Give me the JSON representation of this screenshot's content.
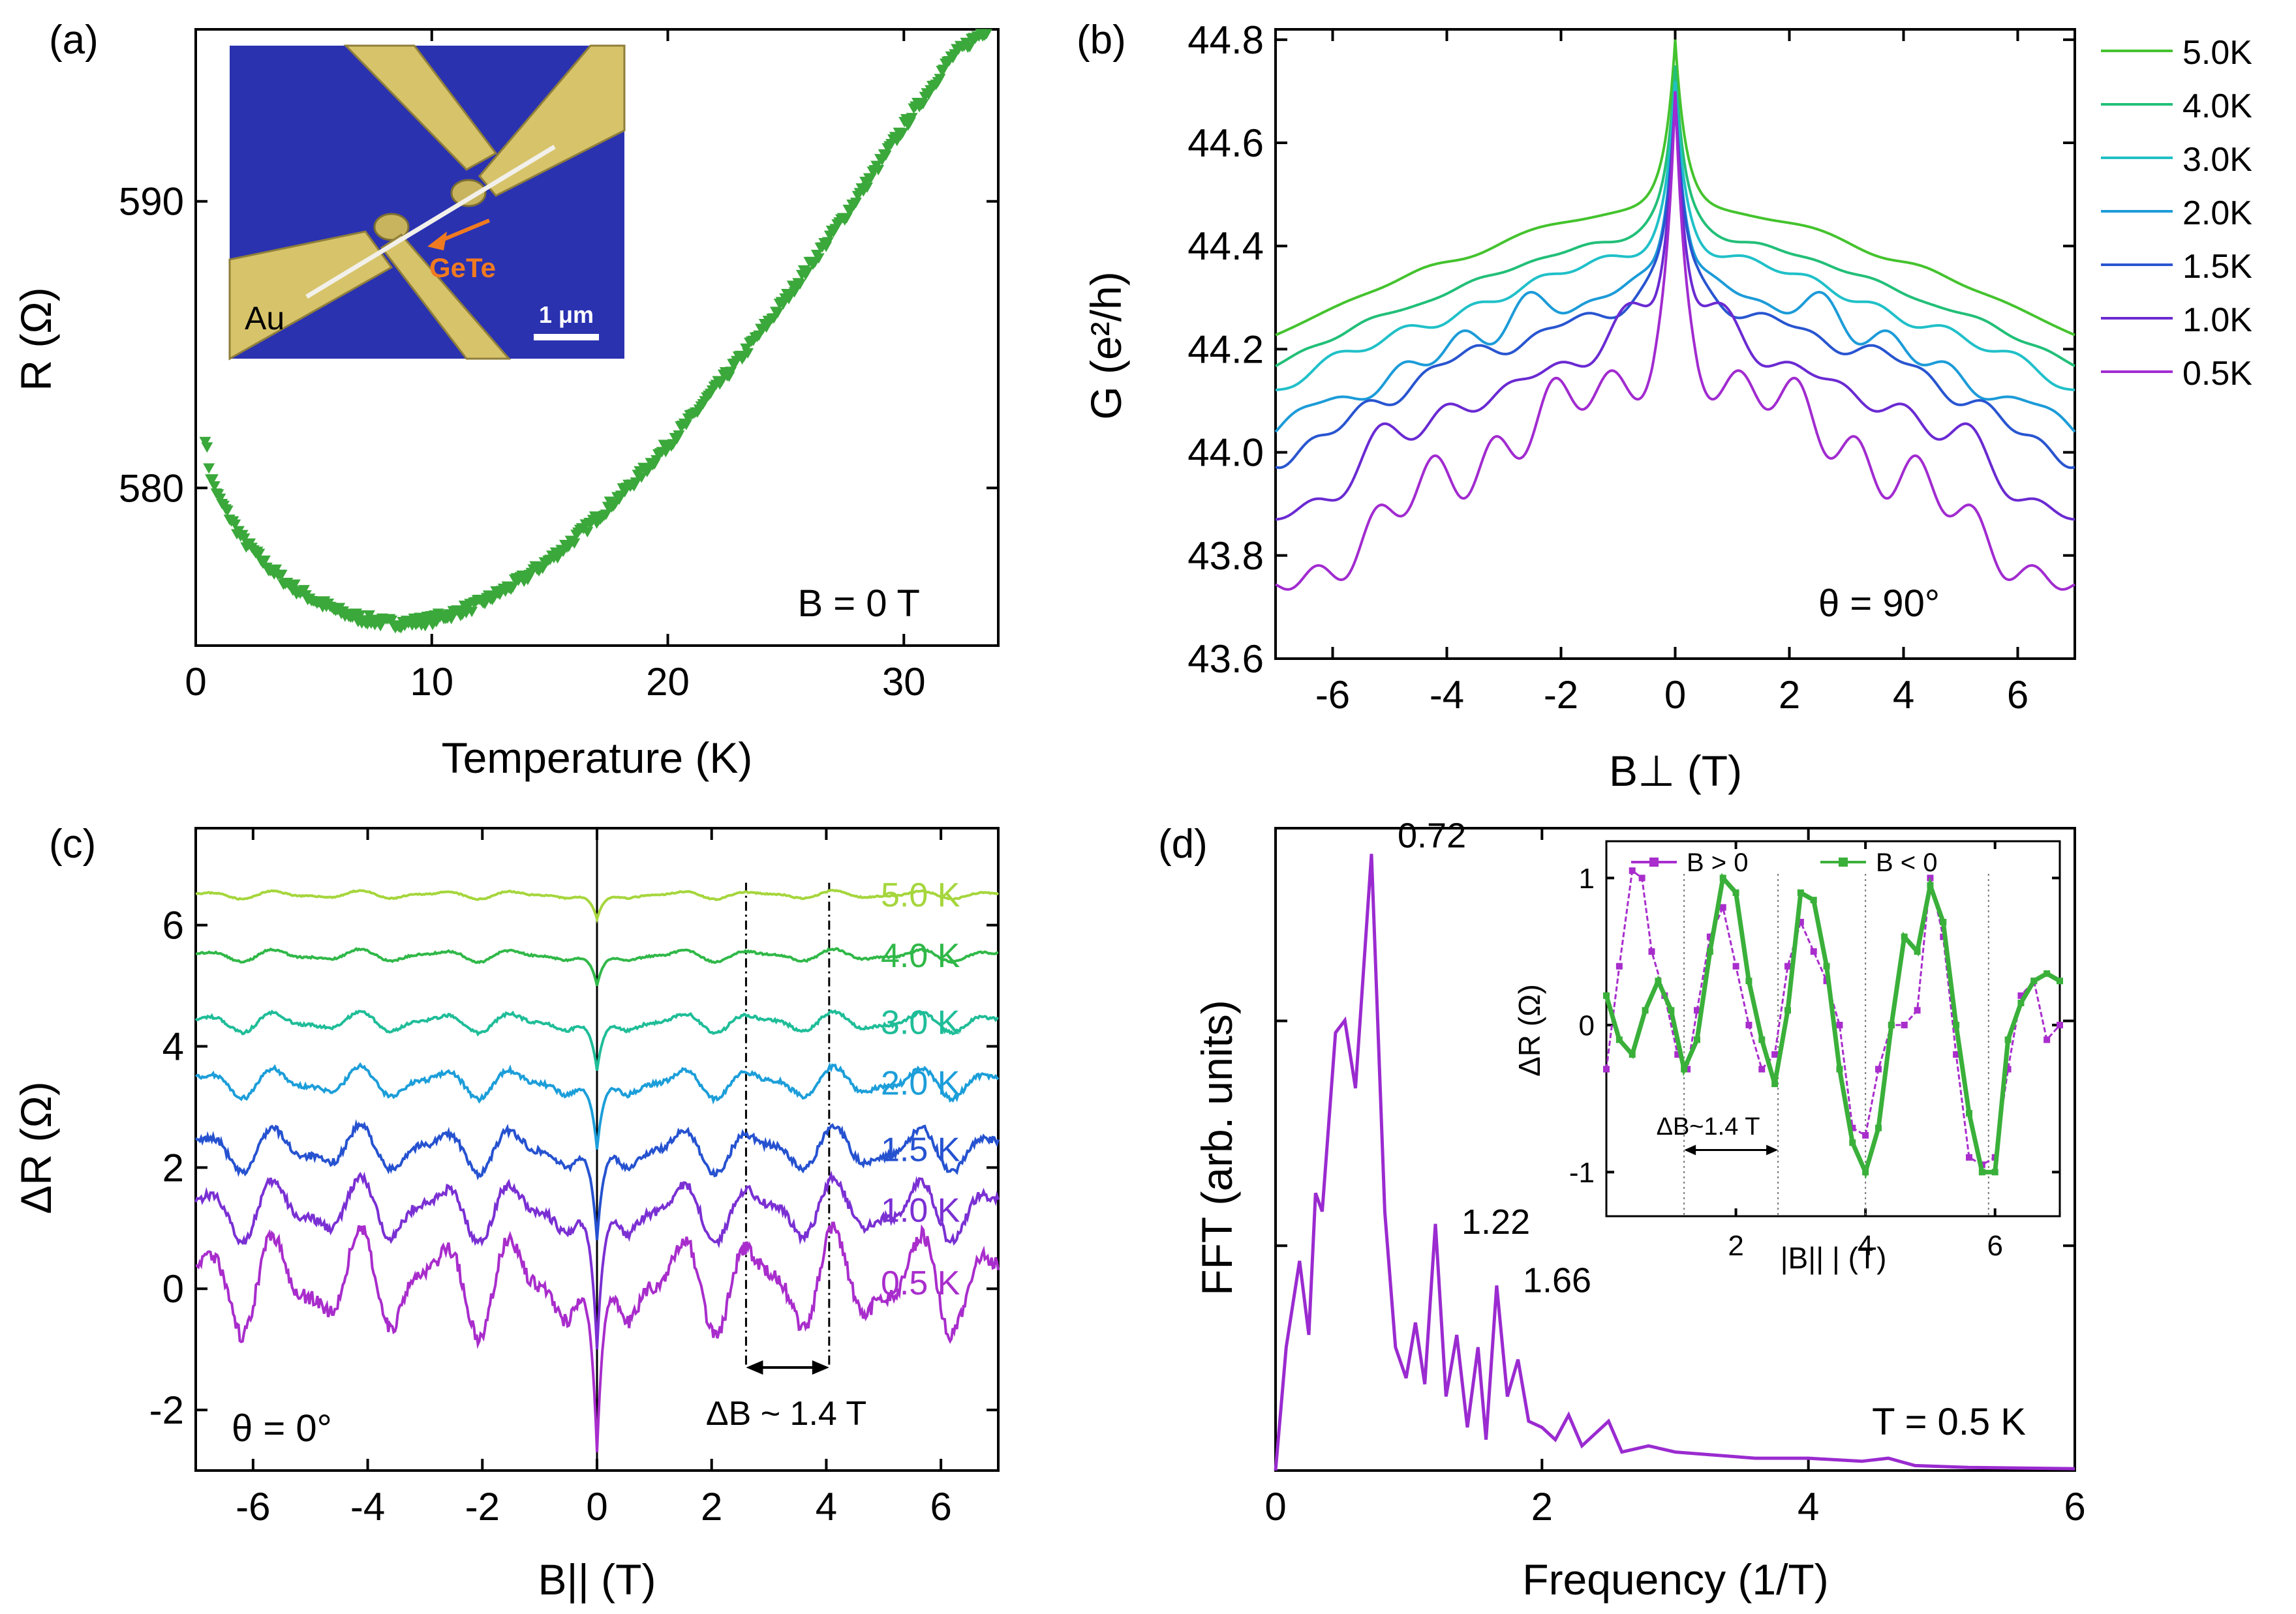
{
  "chart_data": [
    {
      "panel": "(a)",
      "type": "scatter",
      "xlabel": "Temperature (K)",
      "ylabel": "R (Ω)",
      "xlim": [
        0,
        34
      ],
      "ylim": [
        574.5,
        596
      ],
      "xticks": [
        0,
        10,
        20,
        30
      ],
      "yticks": [
        580,
        590
      ],
      "annotation": "B = 0 T",
      "marker_color": "#3aa83a",
      "series": [
        {
          "x": [
            0.4,
            0.6,
            1,
            1.5,
            2,
            3,
            4,
            5,
            6,
            7,
            8,
            9,
            10,
            11,
            12,
            13,
            14,
            15,
            16,
            17,
            18,
            19,
            20,
            21,
            22,
            23,
            24,
            25,
            26,
            27,
            28,
            29,
            30,
            31,
            32,
            33,
            33.5
          ],
          "y": [
            581.8,
            580.5,
            579.6,
            578.9,
            578.2,
            577.3,
            576.6,
            576.1,
            575.7,
            575.45,
            575.3,
            575.3,
            575.4,
            575.65,
            575.95,
            576.4,
            576.9,
            577.5,
            578.2,
            578.95,
            579.75,
            580.6,
            581.5,
            582.45,
            583.45,
            584.45,
            585.5,
            586.6,
            587.75,
            588.9,
            590.1,
            591.35,
            592.6,
            593.8,
            595.0,
            595.7,
            596.0
          ]
        }
      ],
      "inset": {
        "kind": "micrograph",
        "labels": {
          "material": "GeTe",
          "electrode": "Au",
          "scale_bar": "1 μm"
        },
        "colors": {
          "substrate": "#2a32b0",
          "electrode": "#d7c36a",
          "arrow": "#f07a20"
        }
      }
    },
    {
      "panel": "(b)",
      "type": "line",
      "xlabel": "B⊥ (T)",
      "ylabel": "G (e²/h)",
      "xlim": [
        -7,
        7
      ],
      "ylim": [
        43.6,
        44.82
      ],
      "xticks": [
        -6,
        -4,
        -2,
        0,
        2,
        4,
        6
      ],
      "yticks": [
        43.6,
        43.8,
        44.0,
        44.2,
        44.4,
        44.6,
        44.8
      ],
      "ytick_labels": [
        "43.6",
        "43.8",
        "44.0",
        "44.2",
        "44.4",
        "44.6",
        "44.8"
      ],
      "annotation": "θ = 90°",
      "legend_position": "right, outside",
      "series": [
        {
          "name": "5.0K",
          "color": "#44c32e",
          "edge": 44.23,
          "peak": 44.8,
          "amp": 0.012
        },
        {
          "name": "4.0K",
          "color": "#22bf78",
          "edge": 44.17,
          "peak": 44.75,
          "amp": 0.016
        },
        {
          "name": "3.0K",
          "color": "#20c0c8",
          "edge": 44.12,
          "peak": 44.72,
          "amp": 0.02
        },
        {
          "name": "2.0K",
          "color": "#1c9bd8",
          "edge": 44.04,
          "peak": 44.7,
          "amp": 0.028
        },
        {
          "name": "1.5K",
          "color": "#2855d0",
          "edge": 43.99,
          "peak": 44.69,
          "amp": 0.04
        },
        {
          "name": "1.0K",
          "color": "#6a2ad2",
          "edge": 43.87,
          "peak": 44.7,
          "amp": 0.06
        },
        {
          "name": "0.5K",
          "color": "#a12bd0",
          "edge": 43.71,
          "peak": 44.7,
          "amp": 0.09
        }
      ]
    },
    {
      "panel": "(c)",
      "type": "line",
      "xlabel": "B|| (T)",
      "ylabel": "ΔR (Ω)",
      "xlim": [
        -7,
        7
      ],
      "ylim": [
        -3,
        7.6
      ],
      "xticks": [
        -6,
        -4,
        -2,
        0,
        2,
        4,
        6
      ],
      "yticks": [
        -2,
        0,
        2,
        4,
        6
      ],
      "annotation": "θ = 0°",
      "spacing_label": "ΔB ~ 1.4 T",
      "guide_lines_at": [
        2.6,
        4.05
      ],
      "zero_line_at": 0,
      "series": [
        {
          "name": "5.0 K",
          "color": "#a5d63c",
          "offset": 6.5,
          "amp": 0.08,
          "dip": 0.4
        },
        {
          "name": "4.0 K",
          "color": "#30b848",
          "offset": 5.5,
          "amp": 0.12,
          "dip": 0.5
        },
        {
          "name": "3.0 K",
          "color": "#1fbd98",
          "offset": 4.4,
          "amp": 0.2,
          "dip": 0.8
        },
        {
          "name": "2.0 K",
          "color": "#1c9ed9",
          "offset": 3.4,
          "amp": 0.3,
          "dip": 1.1
        },
        {
          "name": "1.5 K",
          "color": "#2652d0",
          "offset": 2.3,
          "amp": 0.45,
          "dip": 1.5
        },
        {
          "name": "1.0 K",
          "color": "#7a30d3",
          "offset": 1.3,
          "amp": 0.6,
          "dip": 2.3
        },
        {
          "name": "0.5 K",
          "color": "#a82dcc",
          "offset": 0.1,
          "amp": 1.0,
          "dip": 2.8
        }
      ]
    },
    {
      "panel": "(d)",
      "type": "line",
      "xlabel": "Frequency (1/T)",
      "ylabel": "FFT (arb. units)",
      "xlim": [
        0,
        6
      ],
      "ylim": [
        0,
        1
      ],
      "xticks": [
        0,
        2,
        4,
        6
      ],
      "annotation": "T = 0.5 K",
      "color": "#9a2bd0",
      "series": [
        {
          "x": [
            0,
            0.08,
            0.18,
            0.25,
            0.3,
            0.35,
            0.45,
            0.52,
            0.6,
            0.72,
            0.82,
            0.9,
            0.98,
            1.05,
            1.12,
            1.2,
            1.28,
            1.36,
            1.44,
            1.52,
            1.58,
            1.66,
            1.74,
            1.82,
            1.9,
            2.0,
            2.1,
            2.2,
            2.3,
            2.4,
            2.5,
            2.6,
            2.8,
            3.0,
            3.3,
            3.6,
            4.0,
            4.4,
            4.6,
            4.8,
            5.2,
            6.0
          ],
          "y": [
            0.0,
            0.2,
            0.34,
            0.22,
            0.45,
            0.42,
            0.71,
            0.73,
            0.62,
            1.0,
            0.42,
            0.2,
            0.15,
            0.24,
            0.14,
            0.4,
            0.12,
            0.22,
            0.07,
            0.2,
            0.05,
            0.3,
            0.12,
            0.18,
            0.08,
            0.07,
            0.05,
            0.09,
            0.04,
            0.06,
            0.08,
            0.03,
            0.04,
            0.03,
            0.025,
            0.02,
            0.02,
            0.015,
            0.02,
            0.008,
            0.005,
            0.003
          ]
        }
      ],
      "peak_labels": [
        {
          "x": 0.72,
          "text": "0.72"
        },
        {
          "x": 1.2,
          "text": "1.22"
        },
        {
          "x": 1.66,
          "text": "1.66"
        }
      ],
      "inset": {
        "type": "line",
        "xlabel": "|B|| | (T)",
        "ylabel": "ΔR (Ω)",
        "xlim": [
          0,
          7
        ],
        "ylim": [
          -1.3,
          1.25
        ],
        "xticks": [
          2,
          4,
          6
        ],
        "yticks": [
          -1,
          0,
          1
        ],
        "spacing_label": "ΔB~1.4 T",
        "guide_lines_at": [
          1.2,
          2.65,
          4.0,
          5.9
        ],
        "series": [
          {
            "name": "B > 0",
            "color": "#a82dcc",
            "x": [
              0,
              0.2,
              0.4,
              0.55,
              0.7,
              0.9,
              1.1,
              1.25,
              1.4,
              1.6,
              1.8,
              2.0,
              2.2,
              2.4,
              2.6,
              2.8,
              3.0,
              3.2,
              3.4,
              3.6,
              3.8,
              4.0,
              4.2,
              4.4,
              4.6,
              4.8,
              5.0,
              5.2,
              5.4,
              5.6,
              5.8,
              6.0,
              6.2,
              6.4,
              6.6,
              6.8,
              7.0
            ],
            "y": [
              -0.3,
              0.4,
              1.05,
              1.0,
              0.5,
              0.2,
              -0.2,
              -0.3,
              0.1,
              0.6,
              0.8,
              0.4,
              0.0,
              -0.3,
              -0.2,
              0.4,
              0.7,
              0.5,
              0.3,
              0.0,
              -0.7,
              -0.75,
              -0.3,
              0.0,
              0.0,
              0.1,
              1.0,
              0.6,
              -0.2,
              -0.9,
              -0.95,
              -0.9,
              -0.3,
              0.2,
              0.3,
              -0.1,
              0.0
            ]
          },
          {
            "name": "B < 0",
            "color": "#3ab03a",
            "x": [
              0,
              0.2,
              0.4,
              0.6,
              0.8,
              1.0,
              1.2,
              1.4,
              1.6,
              1.8,
              2.0,
              2.2,
              2.4,
              2.6,
              2.8,
              3.0,
              3.2,
              3.4,
              3.6,
              3.8,
              4.0,
              4.2,
              4.4,
              4.6,
              4.8,
              5.0,
              5.2,
              5.4,
              5.6,
              5.8,
              6.0,
              6.2,
              6.4,
              6.6,
              6.8,
              7.0
            ],
            "y": [
              0.2,
              -0.1,
              -0.2,
              0.1,
              0.3,
              0.1,
              -0.3,
              -0.1,
              0.5,
              1.0,
              0.9,
              0.3,
              -0.1,
              -0.4,
              0.1,
              0.9,
              0.85,
              0.4,
              -0.3,
              -0.8,
              -1.0,
              -0.7,
              0.0,
              0.6,
              0.5,
              0.95,
              0.7,
              0.0,
              -0.6,
              -1.0,
              -1.0,
              -0.1,
              0.15,
              0.3,
              0.35,
              0.3
            ]
          }
        ]
      }
    }
  ]
}
